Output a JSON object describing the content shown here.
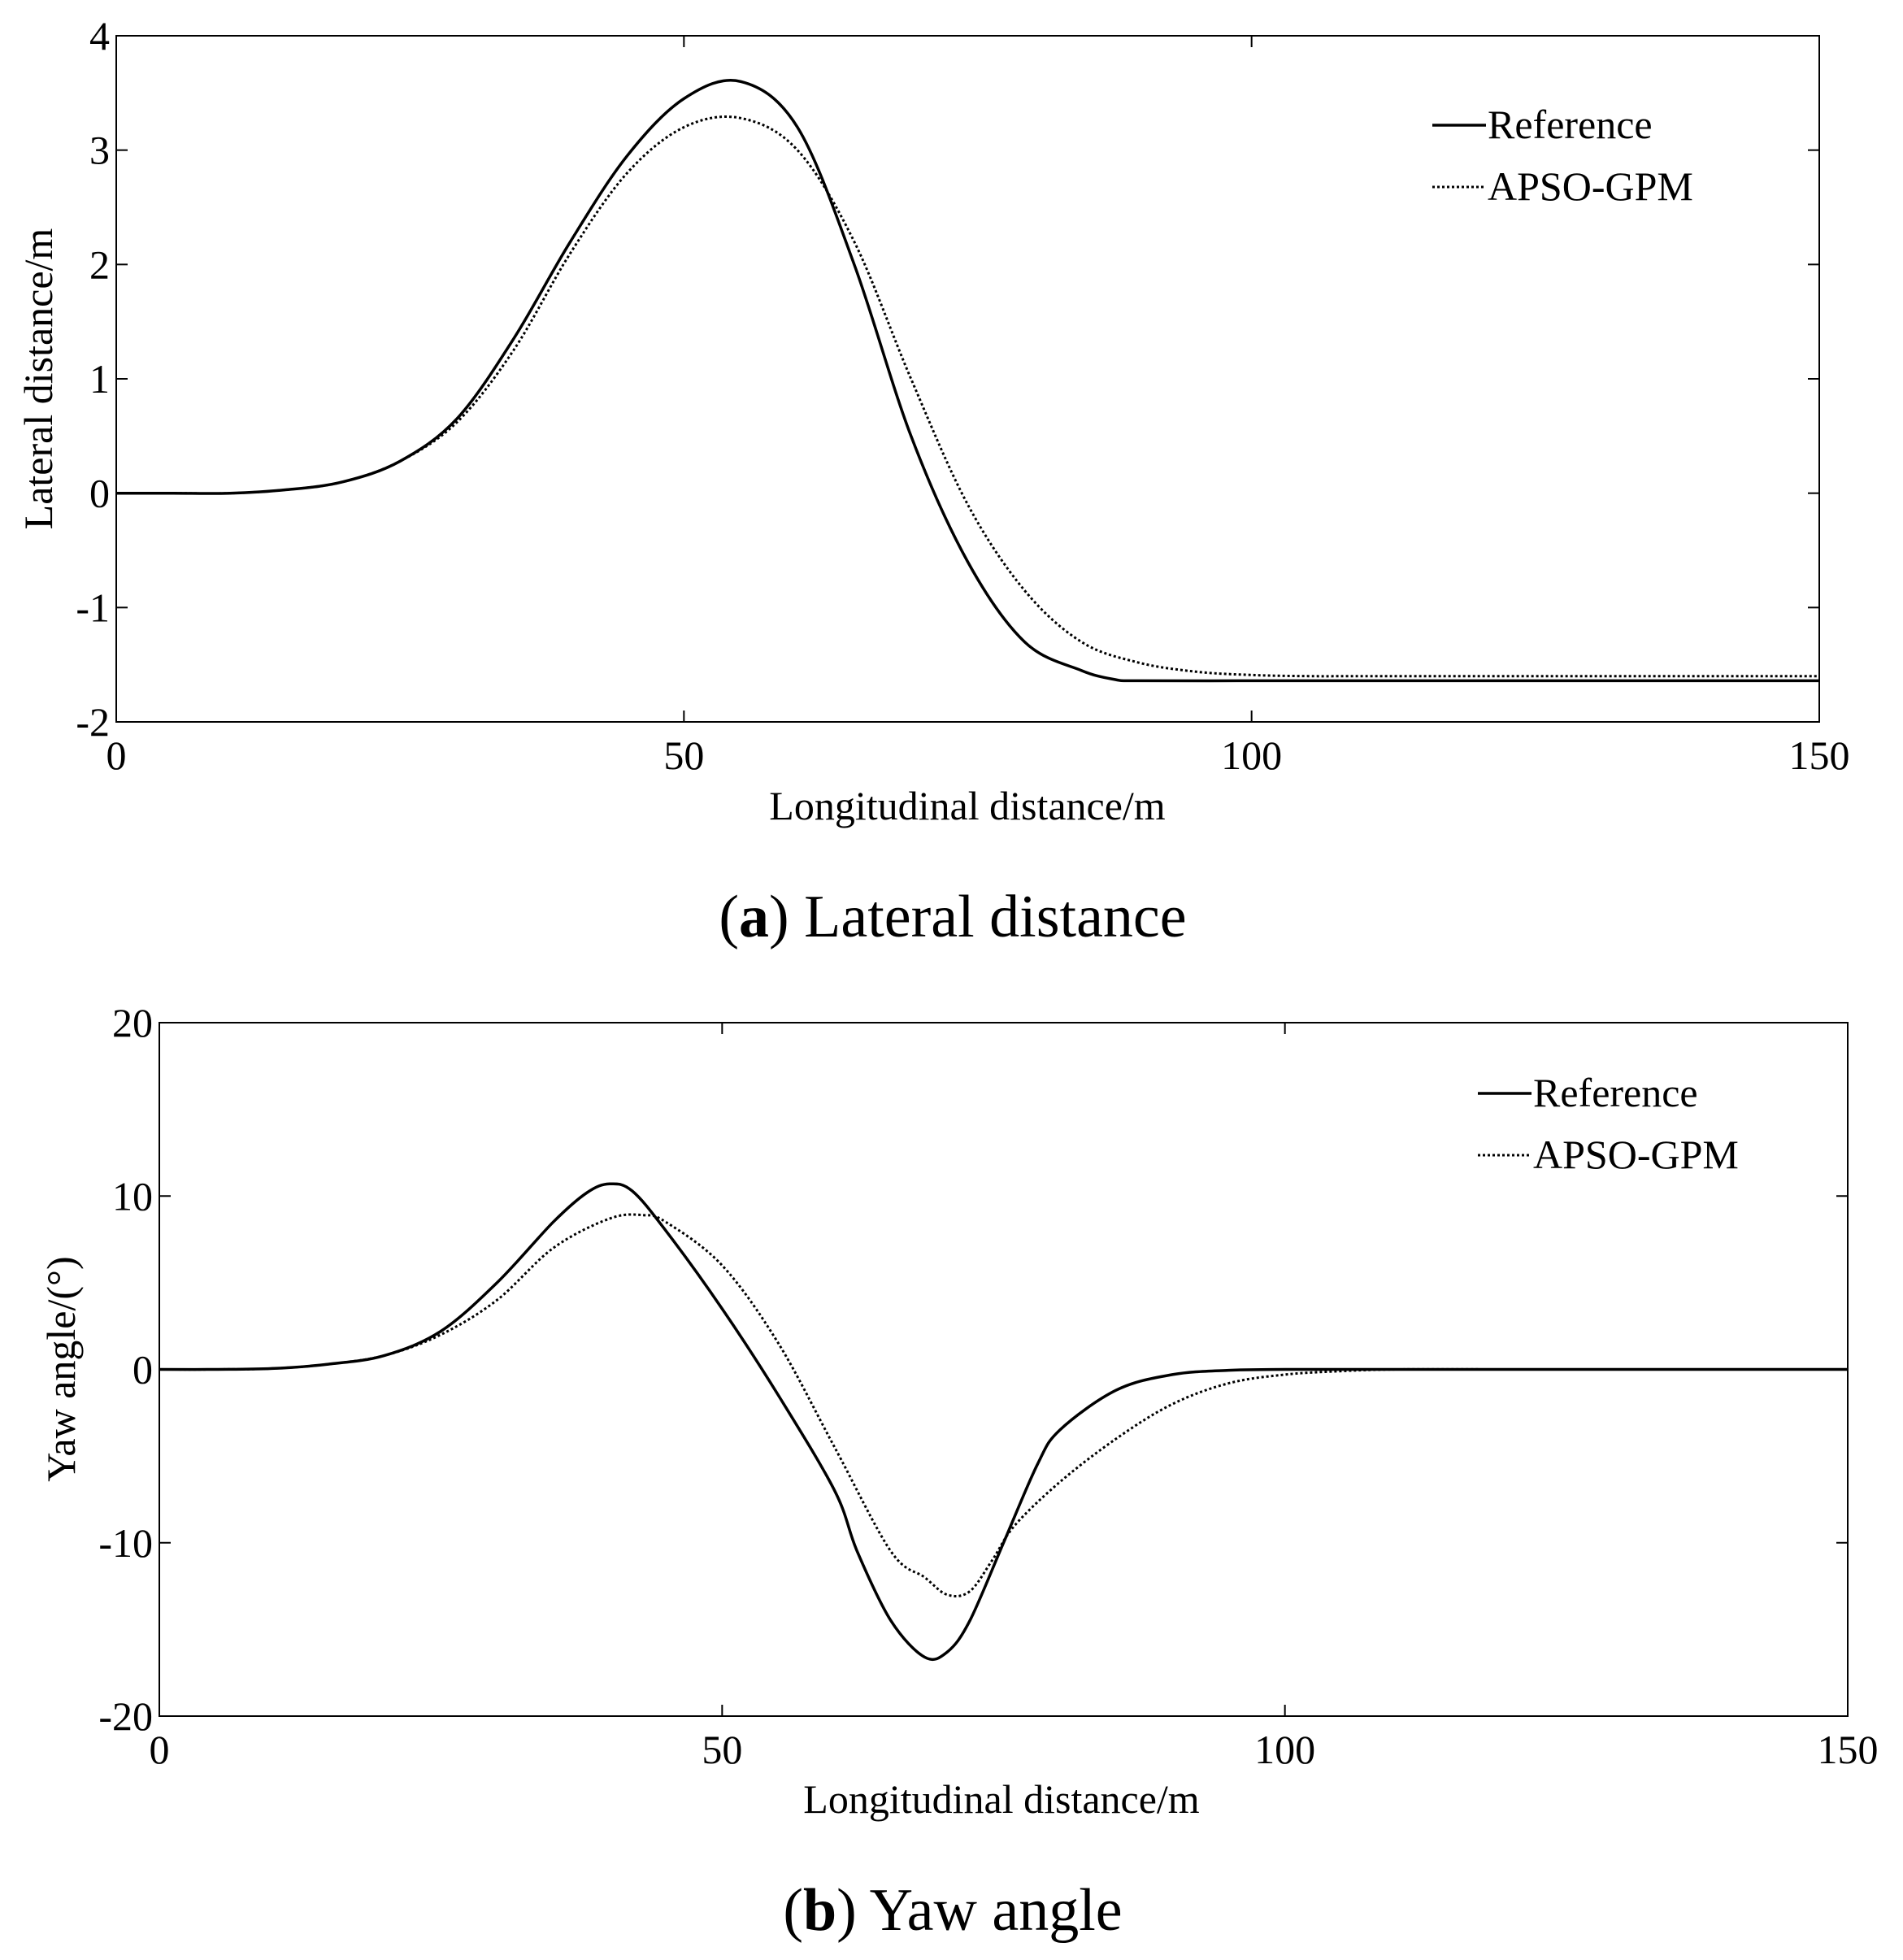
{
  "chart_data": [
    {
      "type": "line",
      "panel_label": "a",
      "caption_text": "Lateral distance",
      "xlabel": "Longitudinal distance/m",
      "ylabel": "Lateral distance/m",
      "xlim": [
        0,
        150
      ],
      "ylim": [
        -2,
        4
      ],
      "xticks": [
        0,
        50,
        100,
        150
      ],
      "yticks": [
        -2,
        -1,
        0,
        1,
        2,
        3,
        4
      ],
      "grid": false,
      "legend_position": "top-right",
      "series": [
        {
          "name": "Reference",
          "style": "solid",
          "x": [
            0,
            5,
            10,
            15,
            20,
            25,
            30,
            35,
            40,
            45,
            50,
            55,
            60,
            65,
            70,
            75,
            80,
            85,
            88,
            90,
            100,
            110,
            120,
            130,
            140,
            150
          ],
          "y": [
            0,
            0,
            0,
            0.03,
            0.1,
            0.28,
            0.65,
            1.35,
            2.2,
            2.95,
            3.45,
            3.6,
            3.2,
            2.0,
            0.5,
            -0.6,
            -1.3,
            -1.55,
            -1.63,
            -1.64,
            -1.64,
            -1.64,
            -1.64,
            -1.64,
            -1.64,
            -1.64
          ]
        },
        {
          "name": "APSO-GPM",
          "style": "dotted",
          "x": [
            0,
            5,
            10,
            15,
            20,
            25,
            30,
            35,
            40,
            45,
            50,
            55,
            60,
            65,
            70,
            75,
            80,
            85,
            90,
            95,
            100,
            105,
            110,
            120,
            130,
            140,
            150
          ],
          "y": [
            0,
            0,
            0,
            0.03,
            0.1,
            0.28,
            0.62,
            1.25,
            2.1,
            2.8,
            3.2,
            3.28,
            3.0,
            2.2,
            1.0,
            -0.1,
            -0.85,
            -1.3,
            -1.48,
            -1.56,
            -1.59,
            -1.6,
            -1.6,
            -1.6,
            -1.6,
            -1.6,
            -1.6
          ]
        }
      ]
    },
    {
      "type": "line",
      "panel_label": "b",
      "caption_text": "Yaw angle",
      "xlabel": "Longitudinal distance/m",
      "ylabel": "Yaw angle/(°)",
      "xlim": [
        0,
        150
      ],
      "ylim": [
        -20,
        20
      ],
      "xticks": [
        0,
        50,
        100,
        150
      ],
      "yticks": [
        -20,
        -10,
        0,
        10,
        20
      ],
      "grid": false,
      "legend_position": "top-right",
      "series": [
        {
          "name": "Reference",
          "style": "solid",
          "x": [
            0,
            5,
            10,
            15,
            20,
            25,
            30,
            35,
            38,
            40,
            42,
            45,
            50,
            55,
            60,
            62,
            65,
            68,
            70,
            72,
            75,
            78,
            80,
            85,
            90,
            95,
            100,
            110,
            120,
            130,
            140,
            150
          ],
          "y": [
            0,
            0,
            0.05,
            0.3,
            0.8,
            2.2,
            5.0,
            8.5,
            10.2,
            10.7,
            10.3,
            8.0,
            3.5,
            -1.5,
            -7.0,
            -10.5,
            -14.5,
            -16.6,
            -16.3,
            -14.5,
            -10.0,
            -5.5,
            -3.5,
            -1.2,
            -0.3,
            -0.05,
            0,
            0,
            0,
            0,
            0,
            0
          ]
        },
        {
          "name": "APSO-GPM",
          "style": "dotted",
          "x": [
            0,
            5,
            10,
            15,
            20,
            25,
            30,
            35,
            40,
            43,
            45,
            50,
            55,
            60,
            65,
            68,
            70,
            72,
            74,
            76,
            80,
            85,
            90,
            95,
            100,
            105,
            110,
            120,
            130,
            140,
            150
          ],
          "y": [
            0,
            0,
            0.05,
            0.3,
            0.8,
            2.0,
            4.0,
            7.0,
            8.7,
            8.9,
            8.5,
            6.0,
            1.5,
            -4.5,
            -10.5,
            -12.0,
            -13.0,
            -12.8,
            -11.0,
            -9.0,
            -6.5,
            -4.0,
            -2.0,
            -0.8,
            -0.3,
            -0.1,
            0,
            0,
            0,
            0,
            0
          ]
        }
      ]
    }
  ]
}
